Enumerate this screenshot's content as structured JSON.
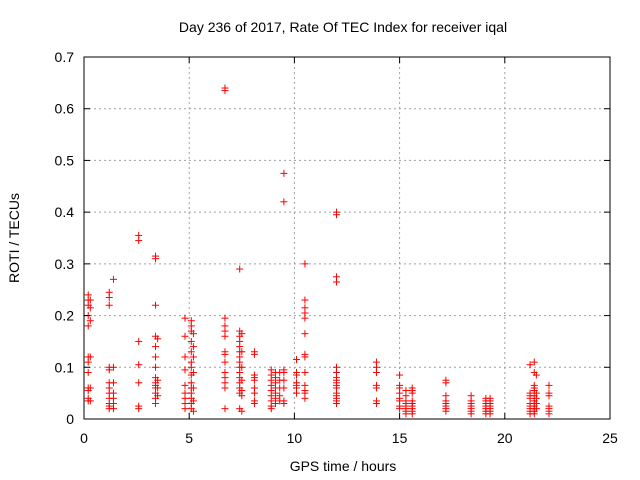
{
  "chart_data": {
    "type": "scatter",
    "title": "Day 236 of 2017, Rate Of TEC Index for receiver iqal",
    "xlabel": "GPS time / hours",
    "ylabel": "ROTI / TECUs",
    "xlim": [
      0,
      25
    ],
    "ylim": [
      0,
      0.7
    ],
    "xticks": [
      "0",
      "5",
      "10",
      "15",
      "20",
      "25"
    ],
    "yticks": [
      "0",
      "0.1",
      "0.2",
      "0.3",
      "0.4",
      "0.5",
      "0.6",
      "0.7"
    ],
    "grid": true,
    "marker": "+",
    "color": "#ff0000",
    "series": [
      {
        "points": [
          [
            0.2,
            0.24
          ],
          [
            0.2,
            0.23
          ],
          [
            0.2,
            0.22
          ],
          [
            0.2,
            0.2
          ],
          [
            0.2,
            0.18
          ],
          [
            0.2,
            0.12
          ],
          [
            0.2,
            0.11
          ],
          [
            0.2,
            0.09
          ],
          [
            0.2,
            0.06
          ],
          [
            0.2,
            0.055
          ],
          [
            0.2,
            0.04
          ],
          [
            0.2,
            0.035
          ],
          [
            0.3,
            0.23
          ],
          [
            0.3,
            0.215
          ],
          [
            0.3,
            0.19
          ],
          [
            0.3,
            0.12
          ],
          [
            0.3,
            0.06
          ],
          [
            0.3,
            0.035
          ],
          [
            1.2,
            0.245
          ],
          [
            1.2,
            0.235
          ],
          [
            1.2,
            0.22
          ],
          [
            1.2,
            0.1
          ],
          [
            1.2,
            0.095
          ],
          [
            1.2,
            0.07
          ],
          [
            1.2,
            0.06
          ],
          [
            1.2,
            0.05
          ],
          [
            1.2,
            0.04
          ],
          [
            1.2,
            0.03
          ],
          [
            1.2,
            0.025
          ],
          [
            1.2,
            0.02
          ],
          [
            1.4,
            0.27
          ],
          [
            1.4,
            0.1
          ],
          [
            1.4,
            0.07
          ],
          [
            1.4,
            0.05
          ],
          [
            1.4,
            0.04
          ],
          [
            1.4,
            0.03
          ],
          [
            1.4,
            0.02
          ],
          [
            2.6,
            0.355
          ],
          [
            2.6,
            0.345
          ],
          [
            2.6,
            0.15
          ],
          [
            2.6,
            0.105
          ],
          [
            2.6,
            0.07
          ],
          [
            2.6,
            0.025
          ],
          [
            2.6,
            0.02
          ],
          [
            3.4,
            0.315
          ],
          [
            3.4,
            0.31
          ],
          [
            3.4,
            0.22
          ],
          [
            3.4,
            0.16
          ],
          [
            3.4,
            0.14
          ],
          [
            3.4,
            0.12
          ],
          [
            3.4,
            0.1
          ],
          [
            3.4,
            0.08
          ],
          [
            3.4,
            0.07
          ],
          [
            3.4,
            0.065
          ],
          [
            3.4,
            0.06
          ],
          [
            3.4,
            0.05
          ],
          [
            3.4,
            0.04
          ],
          [
            3.4,
            0.03
          ],
          [
            3.5,
            0.155
          ],
          [
            3.5,
            0.075
          ],
          [
            3.5,
            0.06
          ],
          [
            3.5,
            0.045
          ],
          [
            4.8,
            0.195
          ],
          [
            4.8,
            0.16
          ],
          [
            4.8,
            0.12
          ],
          [
            4.8,
            0.095
          ],
          [
            4.8,
            0.065
          ],
          [
            4.8,
            0.05
          ],
          [
            4.8,
            0.04
          ],
          [
            4.8,
            0.03
          ],
          [
            4.8,
            0.02
          ],
          [
            5.1,
            0.19
          ],
          [
            5.1,
            0.18
          ],
          [
            5.1,
            0.17
          ],
          [
            5.1,
            0.15
          ],
          [
            5.1,
            0.13
          ],
          [
            5.1,
            0.11
          ],
          [
            5.1,
            0.1
          ],
          [
            5.1,
            0.085
          ],
          [
            5.1,
            0.07
          ],
          [
            5.1,
            0.06
          ],
          [
            5.1,
            0.05
          ],
          [
            5.1,
            0.04
          ],
          [
            5.1,
            0.03
          ],
          [
            5.1,
            0.02
          ],
          [
            5.2,
            0.165
          ],
          [
            5.2,
            0.14
          ],
          [
            5.2,
            0.12
          ],
          [
            5.2,
            0.09
          ],
          [
            5.2,
            0.06
          ],
          [
            5.2,
            0.035
          ],
          [
            5.2,
            0.015
          ],
          [
            6.7,
            0.64
          ],
          [
            6.7,
            0.635
          ],
          [
            6.7,
            0.195
          ],
          [
            6.7,
            0.18
          ],
          [
            6.7,
            0.17
          ],
          [
            6.7,
            0.16
          ],
          [
            6.7,
            0.13
          ],
          [
            6.7,
            0.125
          ],
          [
            6.7,
            0.11
          ],
          [
            6.7,
            0.09
          ],
          [
            6.7,
            0.08
          ],
          [
            6.7,
            0.07
          ],
          [
            6.7,
            0.06
          ],
          [
            6.7,
            0.02
          ],
          [
            7.4,
            0.29
          ],
          [
            7.4,
            0.17
          ],
          [
            7.4,
            0.16
          ],
          [
            7.4,
            0.15
          ],
          [
            7.4,
            0.14
          ],
          [
            7.4,
            0.13
          ],
          [
            7.4,
            0.12
          ],
          [
            7.4,
            0.11
          ],
          [
            7.4,
            0.1
          ],
          [
            7.4,
            0.09
          ],
          [
            7.4,
            0.08
          ],
          [
            7.4,
            0.07
          ],
          [
            7.4,
            0.06
          ],
          [
            7.4,
            0.05
          ],
          [
            7.4,
            0.02
          ],
          [
            7.5,
            0.165
          ],
          [
            7.5,
            0.13
          ],
          [
            7.5,
            0.1
          ],
          [
            7.5,
            0.075
          ],
          [
            7.5,
            0.055
          ],
          [
            7.5,
            0.045
          ],
          [
            7.5,
            0.015
          ],
          [
            8.1,
            0.13
          ],
          [
            8.1,
            0.125
          ],
          [
            8.1,
            0.085
          ],
          [
            8.1,
            0.08
          ],
          [
            8.1,
            0.075
          ],
          [
            8.1,
            0.06
          ],
          [
            8.1,
            0.05
          ],
          [
            8.1,
            0.035
          ],
          [
            8.1,
            0.03
          ],
          [
            8.9,
            0.095
          ],
          [
            8.9,
            0.085
          ],
          [
            8.9,
            0.075
          ],
          [
            8.9,
            0.065
          ],
          [
            8.9,
            0.055
          ],
          [
            8.9,
            0.045
          ],
          [
            8.9,
            0.035
          ],
          [
            8.9,
            0.025
          ],
          [
            8.9,
            0.02
          ],
          [
            9.1,
            0.09
          ],
          [
            9.1,
            0.08
          ],
          [
            9.1,
            0.07
          ],
          [
            9.1,
            0.06
          ],
          [
            9.1,
            0.05
          ],
          [
            9.1,
            0.04
          ],
          [
            9.1,
            0.03
          ],
          [
            9.3,
            0.09
          ],
          [
            9.3,
            0.075
          ],
          [
            9.3,
            0.06
          ],
          [
            9.3,
            0.045
          ],
          [
            9.3,
            0.035
          ],
          [
            9.5,
            0.475
          ],
          [
            9.5,
            0.42
          ],
          [
            9.5,
            0.095
          ],
          [
            9.5,
            0.09
          ],
          [
            9.5,
            0.075
          ],
          [
            9.5,
            0.06
          ],
          [
            9.5,
            0.035
          ],
          [
            9.5,
            0.03
          ],
          [
            10.1,
            0.115
          ],
          [
            10.1,
            0.09
          ],
          [
            10.1,
            0.085
          ],
          [
            10.1,
            0.07
          ],
          [
            10.1,
            0.065
          ],
          [
            10.1,
            0.06
          ],
          [
            10.1,
            0.05
          ],
          [
            10.5,
            0.3
          ],
          [
            10.5,
            0.23
          ],
          [
            10.5,
            0.215
          ],
          [
            10.5,
            0.205
          ],
          [
            10.5,
            0.195
          ],
          [
            10.5,
            0.165
          ],
          [
            10.5,
            0.125
          ],
          [
            10.5,
            0.12
          ],
          [
            10.5,
            0.09
          ],
          [
            10.5,
            0.065
          ],
          [
            10.5,
            0.055
          ],
          [
            10.5,
            0.05
          ],
          [
            10.5,
            0.04
          ],
          [
            12.0,
            0.4
          ],
          [
            12.0,
            0.395
          ],
          [
            12.0,
            0.275
          ],
          [
            12.0,
            0.265
          ],
          [
            12.0,
            0.1
          ],
          [
            12.0,
            0.09
          ],
          [
            12.0,
            0.08
          ],
          [
            12.0,
            0.075
          ],
          [
            12.0,
            0.07
          ],
          [
            12.0,
            0.065
          ],
          [
            12.0,
            0.06
          ],
          [
            12.0,
            0.05
          ],
          [
            12.0,
            0.045
          ],
          [
            12.0,
            0.04
          ],
          [
            12.0,
            0.035
          ],
          [
            12.0,
            0.03
          ],
          [
            13.9,
            0.11
          ],
          [
            13.9,
            0.1
          ],
          [
            13.9,
            0.09
          ],
          [
            13.9,
            0.065
          ],
          [
            13.9,
            0.06
          ],
          [
            13.9,
            0.035
          ],
          [
            13.9,
            0.03
          ],
          [
            15.0,
            0.085
          ],
          [
            15.0,
            0.065
          ],
          [
            15.0,
            0.06
          ],
          [
            15.0,
            0.05
          ],
          [
            15.0,
            0.04
          ],
          [
            15.0,
            0.035
          ],
          [
            15.0,
            0.025
          ],
          [
            15.0,
            0.02
          ],
          [
            15.3,
            0.055
          ],
          [
            15.3,
            0.045
          ],
          [
            15.3,
            0.035
          ],
          [
            15.3,
            0.03
          ],
          [
            15.3,
            0.025
          ],
          [
            15.3,
            0.02
          ],
          [
            15.3,
            0.015
          ],
          [
            15.3,
            0.01
          ],
          [
            15.6,
            0.06
          ],
          [
            15.6,
            0.055
          ],
          [
            15.6,
            0.05
          ],
          [
            15.6,
            0.035
          ],
          [
            15.6,
            0.03
          ],
          [
            15.6,
            0.025
          ],
          [
            15.6,
            0.02
          ],
          [
            15.6,
            0.015
          ],
          [
            15.6,
            0.01
          ],
          [
            17.2,
            0.075
          ],
          [
            17.2,
            0.07
          ],
          [
            17.2,
            0.045
          ],
          [
            17.2,
            0.035
          ],
          [
            17.2,
            0.03
          ],
          [
            17.2,
            0.025
          ],
          [
            17.2,
            0.02
          ],
          [
            17.2,
            0.015
          ],
          [
            18.4,
            0.045
          ],
          [
            18.4,
            0.035
          ],
          [
            18.4,
            0.03
          ],
          [
            18.4,
            0.025
          ],
          [
            18.4,
            0.02
          ],
          [
            18.4,
            0.015
          ],
          [
            18.4,
            0.01
          ],
          [
            19.1,
            0.04
          ],
          [
            19.1,
            0.035
          ],
          [
            19.1,
            0.03
          ],
          [
            19.1,
            0.025
          ],
          [
            19.1,
            0.02
          ],
          [
            19.1,
            0.015
          ],
          [
            19.1,
            0.01
          ],
          [
            19.3,
            0.04
          ],
          [
            19.3,
            0.035
          ],
          [
            19.3,
            0.03
          ],
          [
            19.3,
            0.025
          ],
          [
            19.3,
            0.02
          ],
          [
            19.3,
            0.015
          ],
          [
            19.3,
            0.01
          ],
          [
            21.2,
            0.105
          ],
          [
            21.2,
            0.05
          ],
          [
            21.2,
            0.045
          ],
          [
            21.2,
            0.04
          ],
          [
            21.2,
            0.03
          ],
          [
            21.2,
            0.025
          ],
          [
            21.2,
            0.02
          ],
          [
            21.2,
            0.015
          ],
          [
            21.2,
            0.01
          ],
          [
            21.4,
            0.11
          ],
          [
            21.4,
            0.09
          ],
          [
            21.4,
            0.065
          ],
          [
            21.4,
            0.06
          ],
          [
            21.4,
            0.055
          ],
          [
            21.4,
            0.045
          ],
          [
            21.4,
            0.035
          ],
          [
            21.4,
            0.03
          ],
          [
            21.4,
            0.025
          ],
          [
            21.4,
            0.02
          ],
          [
            21.4,
            0.015
          ],
          [
            21.4,
            0.01
          ],
          [
            21.5,
            0.085
          ],
          [
            21.5,
            0.05
          ],
          [
            21.5,
            0.04
          ],
          [
            21.5,
            0.03
          ],
          [
            21.5,
            0.02
          ],
          [
            22.1,
            0.065
          ],
          [
            22.1,
            0.05
          ],
          [
            22.1,
            0.045
          ],
          [
            22.1,
            0.025
          ],
          [
            22.1,
            0.02
          ],
          [
            22.1,
            0.015
          ],
          [
            22.1,
            0.01
          ]
        ]
      }
    ]
  }
}
